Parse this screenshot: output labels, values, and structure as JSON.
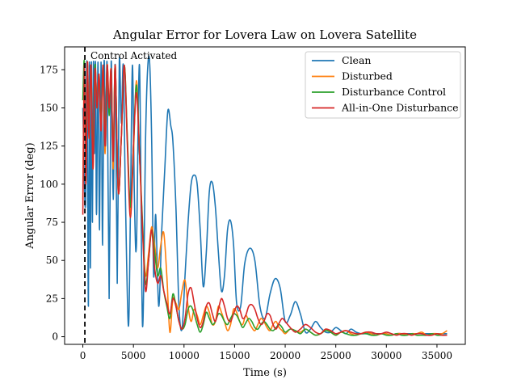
{
  "chart_data": {
    "type": "line",
    "title": "Angular Error for Lovera Law on Lovera Satellite",
    "xlabel": "Time (s)",
    "ylabel": "Angular Error (deg)",
    "xlim": [
      -1800,
      37800
    ],
    "ylim": [
      -5,
      190
    ],
    "xticks": [
      0,
      5000,
      10000,
      15000,
      20000,
      25000,
      30000,
      35000
    ],
    "yticks": [
      0,
      25,
      50,
      75,
      100,
      125,
      150,
      175
    ],
    "grid": false,
    "legend_position": "top-right",
    "annotation": {
      "text": "Control Activated",
      "x": 200
    },
    "series": [
      {
        "name": "Clean",
        "color": "#1f77b4",
        "x": [
          0,
          250,
          400,
          550,
          650,
          750,
          850,
          950,
          1050,
          1150,
          1250,
          1350,
          1500,
          1650,
          1800,
          1950,
          2100,
          2250,
          2400,
          2600,
          2800,
          3000,
          3200,
          3400,
          3600,
          3800,
          4000,
          4200,
          4500,
          4700,
          4900,
          5100,
          5300,
          5600,
          5900,
          6200,
          6400,
          6600,
          6800,
          7000,
          7200,
          7500,
          7800,
          8100,
          8400,
          8700,
          8900,
          9200,
          9500,
          9800,
          10100,
          10400,
          10700,
          11000,
          11300,
          11600,
          11900,
          12200,
          12500,
          12800,
          13100,
          13400,
          13700,
          14000,
          14300,
          14600,
          14900,
          15200,
          15600,
          16000,
          16500,
          17000,
          17500,
          18000,
          18500,
          19000,
          19500,
          20000,
          20500,
          21000,
          21500,
          22000,
          22500,
          23000,
          23500,
          24000,
          24500,
          25000,
          25500,
          26000,
          26500,
          27000,
          27500,
          28000,
          28500,
          29000,
          29500,
          30000,
          30500,
          31000,
          31500,
          32000,
          32500,
          33000,
          33500,
          34000,
          34500,
          35000,
          35500,
          36000
        ],
        "values": [
          150,
          85,
          180,
          20,
          180,
          45,
          180,
          75,
          180,
          120,
          180,
          80,
          180,
          70,
          180,
          60,
          180,
          125,
          178,
          25,
          180,
          90,
          178,
          35,
          180,
          140,
          178,
          95,
          7,
          80,
          178,
          90,
          60,
          178,
          7,
          130,
          175,
          180,
          130,
          40,
          80,
          20,
          70,
          110,
          148,
          138,
          128,
          85,
          20,
          5,
          40,
          75,
          100,
          106,
          100,
          70,
          33,
          55,
          95,
          101,
          85,
          55,
          30,
          40,
          70,
          76,
          60,
          22,
          20,
          48,
          58,
          50,
          20,
          12,
          28,
          38,
          32,
          10,
          14,
          23,
          15,
          3,
          5,
          10,
          6,
          3,
          3,
          6,
          4,
          2,
          5,
          3,
          2,
          2,
          2,
          2,
          2,
          2,
          1,
          2,
          2,
          2,
          2,
          2,
          2,
          2,
          2,
          2,
          2,
          2
        ],
        "x_dense_note": ""
      },
      {
        "name": "Disturbed",
        "color": "#ff7f0e",
        "x": [
          0,
          150,
          300,
          450,
          600,
          800,
          1000,
          1200,
          1400,
          1600,
          1800,
          2000,
          2200,
          2400,
          2600,
          2800,
          3000,
          3200,
          3500,
          3800,
          4100,
          4400,
          4700,
          5000,
          5300,
          5600,
          5900,
          6200,
          6500,
          6800,
          7100,
          7400,
          7700,
          8000,
          8300,
          8600,
          8900,
          9200,
          9500,
          9800,
          10100,
          10400,
          10700,
          11000,
          11300,
          11600,
          11900,
          12200,
          12500,
          12800,
          13100,
          13400,
          13700,
          14000,
          14300,
          14600,
          14900,
          15200,
          15500,
          15800,
          16100,
          16400,
          16700,
          17000,
          17300,
          17600,
          17900,
          18200,
          18500,
          18800,
          19100,
          19400,
          19700,
          20000,
          20500,
          21000,
          21500,
          22000,
          22500,
          23000,
          23500,
          24000,
          24500,
          25000,
          25500,
          26000,
          26500,
          27000,
          27500,
          28000,
          28500,
          29000,
          29500,
          30000,
          30500,
          31000,
          31500,
          32000,
          32500,
          33000,
          33500,
          34000,
          34500,
          35000,
          35500,
          36000
        ],
        "values": [
          90,
          180,
          100,
          180,
          130,
          178,
          110,
          175,
          150,
          170,
          140,
          175,
          120,
          178,
          150,
          175,
          110,
          178,
          95,
          130,
          178,
          130,
          80,
          120,
          168,
          120,
          70,
          40,
          55,
          72,
          60,
          45,
          60,
          68,
          40,
          3,
          25,
          22,
          18,
          30,
          37,
          20,
          10,
          18,
          14,
          8,
          14,
          20,
          16,
          8,
          10,
          20,
          16,
          10,
          4,
          8,
          18,
          16,
          10,
          8,
          14,
          10,
          6,
          4,
          8,
          12,
          10,
          6,
          4,
          8,
          10,
          6,
          4,
          2,
          5,
          4,
          3,
          5,
          3,
          1,
          2,
          5,
          3,
          1,
          3,
          4,
          2,
          1,
          2,
          3,
          2,
          1,
          2,
          2,
          1,
          2,
          2,
          1,
          2,
          2,
          3,
          1,
          2,
          2,
          2,
          4
        ]
      },
      {
        "name": "Disturbance Control",
        "color": "#2ca02c",
        "x": [
          0,
          150,
          300,
          450,
          600,
          800,
          1000,
          1200,
          1400,
          1600,
          1800,
          2000,
          2200,
          2400,
          2600,
          2800,
          3000,
          3200,
          3500,
          3800,
          4100,
          4400,
          4700,
          5000,
          5300,
          5600,
          5900,
          6200,
          6500,
          6800,
          7100,
          7400,
          7700,
          8000,
          8300,
          8600,
          8900,
          9200,
          9500,
          9800,
          10100,
          10400,
          10700,
          11000,
          11300,
          11600,
          11900,
          12200,
          12500,
          12800,
          13100,
          13400,
          13700,
          14000,
          14300,
          14600,
          14900,
          15200,
          15500,
          15800,
          16100,
          16400,
          16700,
          17000,
          17300,
          17600,
          17900,
          18200,
          18500,
          18800,
          19100,
          19400,
          19700,
          20000,
          20500,
          21000,
          21500,
          22000,
          22500,
          23000,
          23500,
          24000,
          24500,
          25000,
          25500,
          26000,
          26500,
          27000,
          27500,
          28000,
          28500,
          29000,
          29500,
          30000,
          30500,
          31000,
          31500,
          32000,
          32500,
          33000,
          33500,
          34000,
          34500,
          35000,
          35500,
          36000
        ],
        "values": [
          155,
          180,
          110,
          178,
          140,
          175,
          120,
          178,
          150,
          172,
          140,
          178,
          130,
          178,
          145,
          175,
          115,
          178,
          95,
          130,
          178,
          130,
          85,
          125,
          165,
          120,
          75,
          35,
          50,
          70,
          55,
          40,
          45,
          30,
          20,
          12,
          28,
          20,
          10,
          5,
          8,
          18,
          20,
          15,
          8,
          3,
          8,
          16,
          12,
          8,
          10,
          15,
          14,
          10,
          8,
          12,
          15,
          14,
          10,
          6,
          9,
          12,
          10,
          6,
          5,
          8,
          10,
          8,
          5,
          4,
          6,
          8,
          6,
          3,
          5,
          4,
          2,
          5,
          3,
          1,
          2,
          4,
          3,
          1,
          3,
          2,
          1,
          1,
          2,
          2,
          1,
          1,
          2,
          1,
          1,
          2,
          1,
          1,
          2,
          1,
          1,
          1,
          2,
          1,
          1,
          1
        ]
      },
      {
        "name": "All-in-One Disturbance",
        "color": "#d62728",
        "x": [
          0,
          150,
          300,
          450,
          600,
          800,
          1000,
          1200,
          1400,
          1600,
          1800,
          2000,
          2200,
          2400,
          2600,
          2800,
          3000,
          3200,
          3500,
          3800,
          4100,
          4400,
          4700,
          5000,
          5300,
          5600,
          5900,
          6200,
          6500,
          6800,
          7100,
          7400,
          7700,
          8000,
          8300,
          8600,
          8900,
          9200,
          9500,
          9800,
          10100,
          10400,
          10700,
          11000,
          11300,
          11600,
          11900,
          12200,
          12500,
          12800,
          13100,
          13400,
          13700,
          14000,
          14300,
          14600,
          14900,
          15200,
          15500,
          15800,
          16100,
          16400,
          16700,
          17000,
          17300,
          17600,
          17900,
          18200,
          18500,
          18800,
          19100,
          19400,
          19700,
          20000,
          20500,
          21000,
          21500,
          22000,
          22500,
          23000,
          23500,
          24000,
          24500,
          25000,
          25500,
          26000,
          26500,
          27000,
          27500,
          28000,
          28500,
          29000,
          29500,
          30000,
          30500,
          31000,
          31500,
          32000,
          32500,
          33000,
          33500,
          34000,
          34500,
          35000,
          35500,
          36000
        ],
        "values": [
          80,
          178,
          100,
          180,
          130,
          178,
          110,
          175,
          150,
          172,
          135,
          178,
          125,
          178,
          150,
          175,
          115,
          178,
          95,
          130,
          178,
          125,
          78,
          125,
          160,
          120,
          70,
          30,
          50,
          70,
          45,
          35,
          40,
          30,
          22,
          15,
          25,
          20,
          10,
          5,
          12,
          28,
          32,
          22,
          12,
          6,
          10,
          20,
          22,
          15,
          10,
          18,
          25,
          20,
          12,
          10,
          15,
          20,
          18,
          12,
          14,
          20,
          21,
          18,
          12,
          8,
          10,
          15,
          14,
          8,
          5,
          9,
          12,
          10,
          6,
          3,
          5,
          8,
          6,
          3,
          2,
          5,
          4,
          2,
          3,
          4,
          3,
          2,
          2,
          3,
          3,
          2,
          2,
          3,
          2,
          1,
          2,
          2,
          1,
          2,
          2,
          1,
          1,
          2,
          1,
          1
        ]
      }
    ]
  }
}
